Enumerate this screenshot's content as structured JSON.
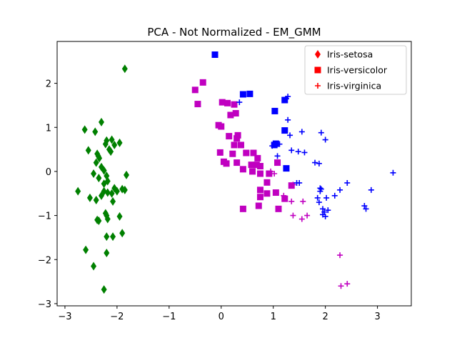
{
  "chart_data": {
    "type": "scatter",
    "title": "PCA - Not Normalized - EM_GMM",
    "xlabel": "",
    "ylabel": "",
    "xlim": [
      -3.15,
      3.65
    ],
    "ylim": [
      -3.05,
      2.95
    ],
    "xticks": [
      -3,
      -2,
      -1,
      0,
      1,
      2,
      3
    ],
    "yticks": [
      -3,
      -2,
      -1,
      0,
      1,
      2
    ],
    "grid": false,
    "legend_position": "top-right",
    "legend": [
      {
        "label": "Iris-setosa",
        "marker": "diamond",
        "color": "#ff0000"
      },
      {
        "label": "Iris-versicolor",
        "marker": "square",
        "color": "#ff0000"
      },
      {
        "label": "Iris-virginica",
        "marker": "plus",
        "color": "#ff0000"
      }
    ],
    "series": [
      {
        "marker": "diamond",
        "color": "#008000",
        "points": [
          [
            -1.85,
            2.33
          ],
          [
            -2.62,
            0.95
          ],
          [
            -2.42,
            0.9
          ],
          [
            -2.3,
            1.12
          ],
          [
            -2.55,
            0.48
          ],
          [
            -2.38,
            0.4
          ],
          [
            -2.36,
            0.35
          ],
          [
            -2.34,
            0.3
          ],
          [
            -2.2,
            0.7
          ],
          [
            -2.22,
            0.62
          ],
          [
            -2.1,
            0.72
          ],
          [
            -2.05,
            0.6
          ],
          [
            -2.15,
            0.5
          ],
          [
            -2.12,
            0.45
          ],
          [
            -1.95,
            0.65
          ],
          [
            -2.4,
            0.2
          ],
          [
            -2.3,
            0.1
          ],
          [
            -2.25,
            0.02
          ],
          [
            -2.2,
            -0.1
          ],
          [
            -2.45,
            -0.05
          ],
          [
            -2.35,
            -0.15
          ],
          [
            -2.25,
            -0.28
          ],
          [
            -2.18,
            -0.22
          ],
          [
            -1.82,
            -0.08
          ],
          [
            -2.75,
            -0.45
          ],
          [
            -2.52,
            -0.6
          ],
          [
            -2.3,
            -0.55
          ],
          [
            -2.25,
            -0.45
          ],
          [
            -2.18,
            -0.48
          ],
          [
            -2.1,
            -0.5
          ],
          [
            -2.05,
            -0.38
          ],
          [
            -2.0,
            -0.45
          ],
          [
            -1.9,
            -0.4
          ],
          [
            -1.85,
            -0.42
          ],
          [
            -2.4,
            -0.65
          ],
          [
            -2.08,
            -0.68
          ],
          [
            -2.38,
            -1.1
          ],
          [
            -2.35,
            -1.12
          ],
          [
            -2.22,
            -0.95
          ],
          [
            -2.2,
            -1.0
          ],
          [
            -2.18,
            -1.08
          ],
          [
            -1.95,
            -1.02
          ],
          [
            -2.2,
            -1.48
          ],
          [
            -2.08,
            -1.48
          ],
          [
            -1.9,
            -1.4
          ],
          [
            -2.6,
            -1.78
          ],
          [
            -2.2,
            -1.85
          ],
          [
            -2.45,
            -2.15
          ],
          [
            -2.25,
            -2.68
          ]
        ]
      },
      {
        "marker": "square",
        "color": "#0000ff",
        "points": [
          [
            -0.12,
            2.65
          ],
          [
            0.42,
            1.75
          ],
          [
            0.55,
            1.76
          ],
          [
            1.22,
            1.62
          ],
          [
            1.03,
            1.37
          ],
          [
            1.22,
            0.93
          ],
          [
            1.05,
            0.63
          ],
          [
            1.02,
            0.6
          ],
          [
            1.25,
            0.07
          ]
        ]
      },
      {
        "marker": "square",
        "color": "#c000c0",
        "points": [
          [
            -0.5,
            1.85
          ],
          [
            -0.35,
            2.02
          ],
          [
            -0.45,
            1.53
          ],
          [
            0.02,
            1.57
          ],
          [
            0.12,
            1.55
          ],
          [
            0.25,
            1.52
          ],
          [
            0.28,
            1.32
          ],
          [
            0.18,
            1.28
          ],
          [
            -0.05,
            1.05
          ],
          [
            0.0,
            1.02
          ],
          [
            0.15,
            0.8
          ],
          [
            0.32,
            0.82
          ],
          [
            0.3,
            0.75
          ],
          [
            0.25,
            0.6
          ],
          [
            0.38,
            0.6
          ],
          [
            -0.02,
            0.43
          ],
          [
            0.22,
            0.4
          ],
          [
            0.48,
            0.42
          ],
          [
            0.62,
            0.42
          ],
          [
            0.7,
            0.3
          ],
          [
            0.05,
            0.22
          ],
          [
            0.1,
            0.18
          ],
          [
            0.3,
            0.2
          ],
          [
            0.42,
            0.05
          ],
          [
            0.58,
            0.15
          ],
          [
            0.68,
            0.15
          ],
          [
            0.75,
            0.12
          ],
          [
            0.6,
            0.0
          ],
          [
            0.75,
            -0.05
          ],
          [
            0.92,
            -0.05
          ],
          [
            0.88,
            -0.25
          ],
          [
            0.75,
            -0.42
          ],
          [
            0.75,
            -0.58
          ],
          [
            0.88,
            -0.5
          ],
          [
            1.05,
            -0.48
          ],
          [
            1.22,
            -0.62
          ],
          [
            1.35,
            -0.32
          ],
          [
            1.08,
            0.2
          ],
          [
            0.42,
            -0.85
          ],
          [
            0.72,
            -0.78
          ],
          [
            1.1,
            -0.85
          ]
        ]
      },
      {
        "marker": "plus",
        "color": "#0000ff",
        "points": [
          [
            0.35,
            1.57
          ],
          [
            1.25,
            1.65
          ],
          [
            1.28,
            1.7
          ],
          [
            1.28,
            1.17
          ],
          [
            1.55,
            0.9
          ],
          [
            1.92,
            0.88
          ],
          [
            2.0,
            0.72
          ],
          [
            1.32,
            0.82
          ],
          [
            0.98,
            0.58
          ],
          [
            1.12,
            0.62
          ],
          [
            1.08,
            0.35
          ],
          [
            1.35,
            0.48
          ],
          [
            1.48,
            0.45
          ],
          [
            1.6,
            0.43
          ],
          [
            1.8,
            0.2
          ],
          [
            1.88,
            0.18
          ],
          [
            1.45,
            -0.26
          ],
          [
            1.5,
            -0.26
          ],
          [
            1.9,
            -0.38
          ],
          [
            1.92,
            -0.4
          ],
          [
            1.9,
            -0.45
          ],
          [
            2.02,
            -0.6
          ],
          [
            2.18,
            -0.55
          ],
          [
            2.28,
            -0.42
          ],
          [
            2.42,
            -0.26
          ],
          [
            2.88,
            -0.42
          ],
          [
            3.3,
            -0.03
          ],
          [
            1.85,
            -0.6
          ],
          [
            1.88,
            -0.7
          ],
          [
            1.95,
            -0.85
          ],
          [
            1.98,
            -0.92
          ],
          [
            2.0,
            -1.02
          ],
          [
            2.05,
            -0.88
          ],
          [
            1.95,
            -0.98
          ],
          [
            2.75,
            -0.78
          ],
          [
            2.78,
            -0.85
          ]
        ]
      },
      {
        "marker": "plus",
        "color": "#c000c0",
        "points": [
          [
            0.95,
            0.0
          ],
          [
            1.02,
            -0.05
          ],
          [
            1.38,
            -0.3
          ],
          [
            1.2,
            -0.55
          ],
          [
            1.35,
            -0.68
          ],
          [
            1.57,
            -0.68
          ],
          [
            1.38,
            -1.0
          ],
          [
            1.55,
            -1.08
          ],
          [
            1.65,
            -1.0
          ],
          [
            2.28,
            -1.9
          ],
          [
            2.3,
            -2.6
          ],
          [
            2.42,
            -2.55
          ]
        ]
      }
    ]
  }
}
